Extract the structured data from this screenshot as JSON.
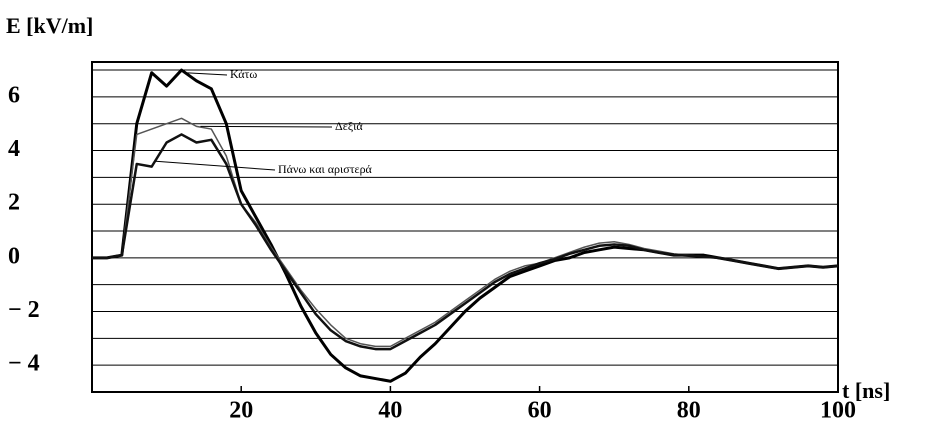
{
  "chart_data": {
    "type": "line",
    "y_label": "E [kV/m]",
    "x_label": "t [ns]",
    "x": [
      0,
      2,
      4,
      6,
      8,
      10,
      12,
      14,
      16,
      18,
      20,
      22,
      24,
      26,
      28,
      30,
      32,
      34,
      36,
      38,
      40,
      42,
      44,
      46,
      48,
      50,
      52,
      54,
      56,
      58,
      60,
      62,
      64,
      66,
      68,
      70,
      72,
      74,
      76,
      78,
      80,
      82,
      84,
      86,
      88,
      90,
      92,
      94,
      96,
      98,
      100
    ],
    "series": [
      {
        "name": "Κάτω",
        "color": "#000000",
        "values": [
          0,
          0,
          0.1,
          5,
          6.9,
          6.4,
          7.0,
          6.6,
          6.3,
          5.0,
          2.5,
          1.5,
          0.5,
          -0.6,
          -1.8,
          -2.8,
          -3.6,
          -4.1,
          -4.4,
          -4.5,
          -4.6,
          -4.3,
          -3.7,
          -3.2,
          -2.6,
          -2.0,
          -1.5,
          -1.1,
          -0.7,
          -0.5,
          -0.3,
          -0.1,
          0.0,
          0.2,
          0.3,
          0.4,
          0.35,
          0.3,
          0.2,
          0.1,
          0.1,
          0.1,
          0.0,
          -0.1,
          -0.2,
          -0.3,
          -0.4,
          -0.35,
          -0.3,
          -0.35,
          -0.3
        ]
      },
      {
        "name": "Δεξιά",
        "color": "#555555",
        "values": [
          0,
          0,
          0.1,
          4.6,
          4.8,
          5.0,
          5.2,
          4.9,
          4.8,
          3.8,
          2.0,
          1.3,
          0.4,
          -0.4,
          -1.2,
          -1.9,
          -2.5,
          -3.0,
          -3.2,
          -3.3,
          -3.3,
          -3.0,
          -2.7,
          -2.4,
          -2.0,
          -1.6,
          -1.2,
          -0.8,
          -0.5,
          -0.3,
          -0.2,
          0.0,
          0.2,
          0.4,
          0.55,
          0.6,
          0.5,
          0.35,
          0.25,
          0.15,
          0.1,
          0.05,
          0.0,
          -0.1,
          -0.2,
          -0.3,
          -0.4,
          -0.35,
          -0.3,
          -0.35,
          -0.3
        ]
      },
      {
        "name": "Πάνω και αριστερά",
        "color": "#111111",
        "values": [
          0,
          0,
          0.1,
          3.5,
          3.4,
          4.3,
          4.6,
          4.3,
          4.4,
          3.5,
          2.0,
          1.2,
          0.3,
          -0.5,
          -1.3,
          -2.1,
          -2.7,
          -3.1,
          -3.3,
          -3.4,
          -3.4,
          -3.1,
          -2.8,
          -2.5,
          -2.1,
          -1.7,
          -1.3,
          -0.9,
          -0.6,
          -0.4,
          -0.2,
          -0.05,
          0.15,
          0.3,
          0.45,
          0.5,
          0.45,
          0.3,
          0.2,
          0.12,
          0.08,
          0.04,
          0.0,
          -0.1,
          -0.2,
          -0.3,
          -0.4,
          -0.35,
          -0.3,
          -0.35,
          -0.3
        ]
      }
    ],
    "xlim": [
      0,
      100
    ],
    "ylim": [
      -5,
      7.3
    ],
    "xticks": [
      20,
      40,
      60,
      80,
      100
    ],
    "yticks": [
      {
        "value": -4,
        "label": "− 4"
      },
      {
        "value": -2,
        "label": "− 2"
      },
      0,
      2,
      4,
      6
    ],
    "minor_yticks": [
      -5,
      -3,
      -1,
      1,
      3,
      5,
      7
    ],
    "grid": true
  }
}
